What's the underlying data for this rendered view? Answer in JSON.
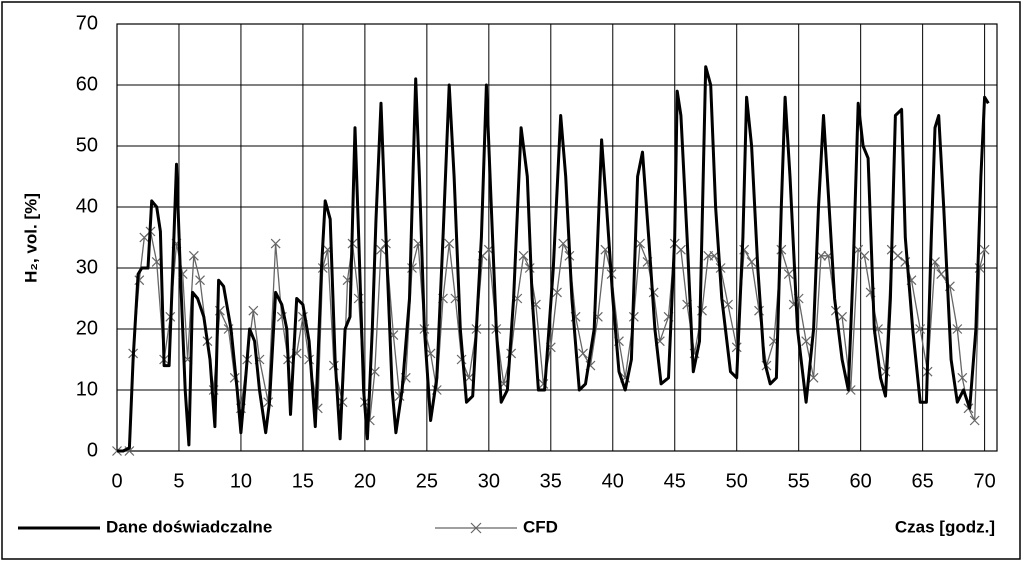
{
  "chart_data": {
    "type": "line",
    "xlabel": "Czas [godz.]",
    "ylabel": "H₂, vol. [%]",
    "xlim": [
      0,
      71
    ],
    "ylim": [
      0,
      70
    ],
    "xticks": [
      0,
      5,
      10,
      15,
      20,
      25,
      30,
      35,
      40,
      45,
      50,
      55,
      60,
      65,
      70
    ],
    "yticks": [
      0,
      10,
      20,
      30,
      40,
      50,
      60,
      70
    ],
    "grid": true,
    "series": [
      {
        "name": "Dane doświadczalne",
        "color": "#000000",
        "marker": "none",
        "x": [
          0,
          0.5,
          1,
          1.3,
          1.7,
          2,
          2.5,
          2.8,
          3.2,
          3.5,
          3.8,
          4.2,
          4.5,
          4.8,
          5.1,
          5.5,
          5.8,
          6.1,
          6.5,
          7,
          7.5,
          7.9,
          8.2,
          8.6,
          9.2,
          9.7,
          10,
          10.3,
          10.7,
          11.1,
          11.5,
          12,
          12.3,
          12.8,
          13.3,
          13.7,
          14,
          14.5,
          15,
          15.5,
          16,
          16.5,
          16.8,
          17.2,
          17.6,
          18,
          18.4,
          18.8,
          19.2,
          19.5,
          19.9,
          20.2,
          20.6,
          20.9,
          21.3,
          21.7,
          22.2,
          22.5,
          23,
          23.6,
          24.1,
          24.4,
          24.8,
          25.3,
          25.8,
          26.3,
          26.8,
          27.2,
          27.7,
          28.2,
          28.7,
          29.4,
          29.8,
          30.2,
          30.6,
          31,
          31.5,
          32,
          32.6,
          33.1,
          33.5,
          34,
          34.5,
          35.2,
          35.8,
          36.2,
          36.7,
          37.3,
          37.8,
          38.5,
          39.1,
          39.5,
          40,
          40.5,
          41,
          41.5,
          42,
          42.4,
          42.9,
          43.4,
          43.9,
          44.5,
          45,
          45.2,
          45.5,
          46,
          46.5,
          47,
          47.5,
          47.9,
          48.3,
          48.8,
          49.5,
          50,
          50.5,
          50.8,
          51.2,
          51.7,
          52.2,
          52.7,
          53.2,
          53.6,
          53.9,
          54.3,
          54.9,
          55.6,
          56.2,
          56.6,
          57,
          57.4,
          57.9,
          58.5,
          59,
          59.4,
          59.8,
          60.2,
          60.6,
          61.1,
          61.6,
          62,
          62.4,
          62.8,
          63.3,
          63.6,
          64.2,
          64.8,
          65.3,
          65.7,
          66,
          66.3,
          66.7,
          67.3,
          67.8,
          68.3,
          68.8,
          69.3,
          69.7,
          70,
          70.3
        ],
        "values": [
          0,
          0,
          0.5,
          15,
          29,
          30,
          30,
          41,
          40,
          36,
          14,
          14,
          30,
          47,
          30,
          10,
          1,
          26,
          25,
          22,
          15,
          4,
          28,
          27,
          20,
          10,
          3,
          10,
          20,
          18,
          10,
          3,
          8,
          26,
          24,
          20,
          6,
          25,
          24,
          18,
          4,
          30,
          41,
          38,
          15,
          2,
          20,
          22,
          53,
          35,
          10,
          2,
          20,
          38,
          57,
          35,
          10,
          3,
          10,
          25,
          61,
          45,
          20,
          5,
          12,
          35,
          60,
          45,
          20,
          8,
          9,
          35,
          60,
          40,
          20,
          8,
          10,
          25,
          53,
          45,
          25,
          10,
          10,
          30,
          55,
          45,
          25,
          10,
          11,
          20,
          51,
          40,
          25,
          13,
          10,
          15,
          45,
          49,
          35,
          20,
          11,
          12,
          35,
          59,
          55,
          35,
          13,
          18,
          63,
          60,
          40,
          25,
          13,
          12,
          35,
          58,
          50,
          30,
          15,
          11,
          12,
          40,
          58,
          45,
          20,
          8,
          20,
          40,
          55,
          42,
          25,
          15,
          10,
          30,
          57,
          50,
          48,
          20,
          12,
          9,
          25,
          55,
          56,
          35,
          20,
          8,
          8,
          35,
          53,
          55,
          40,
          15,
          8,
          10,
          7,
          20,
          45,
          58,
          57
        ]
      },
      {
        "name": "CFD",
        "color": "#666666",
        "marker": "x",
        "x": [
          0,
          1,
          1.3,
          1.8,
          2.2,
          2.7,
          3.2,
          3.8,
          4.3,
          4.8,
          5.3,
          5.7,
          6.2,
          6.7,
          7.3,
          7.8,
          8.3,
          9,
          9.5,
          10,
          10.5,
          11,
          11.5,
          12.2,
          12.8,
          13.3,
          13.8,
          14.5,
          15,
          15.5,
          16.2,
          16.6,
          17,
          17.5,
          18.2,
          18.6,
          19,
          19.5,
          20,
          20.4,
          20.8,
          21.3,
          21.7,
          22.3,
          22.8,
          23.3,
          23.8,
          24.3,
          24.8,
          25.3,
          25.8,
          26.3,
          26.8,
          27.3,
          27.8,
          28.4,
          29,
          29.5,
          30,
          30.6,
          31.2,
          31.8,
          32.3,
          32.8,
          33.3,
          33.8,
          34.4,
          35,
          35.5,
          36,
          36.5,
          37,
          37.6,
          38.2,
          38.8,
          39.4,
          39.9,
          40.5,
          41,
          41.7,
          42.2,
          42.8,
          43.3,
          43.8,
          44.5,
          45,
          45.5,
          46,
          46.6,
          47.2,
          47.7,
          48.2,
          48.7,
          49.3,
          50,
          50.6,
          51.2,
          51.8,
          52.4,
          53,
          53.6,
          54.2,
          54.6,
          55,
          55.6,
          56.2,
          56.8,
          57.4,
          58,
          58.5,
          59.2,
          59.8,
          60.3,
          60.8,
          61.4,
          62,
          62.5,
          63,
          63.6,
          64.1,
          64.8,
          65.4,
          66,
          66.5,
          67.2,
          67.8,
          68.2,
          68.7,
          69.2,
          69.6,
          70
        ],
        "values": [
          0,
          0,
          16,
          28,
          35,
          36,
          31,
          15,
          22,
          34,
          29,
          15,
          32,
          28,
          18,
          10,
          23,
          20,
          12,
          7,
          15,
          23,
          15,
          8,
          34,
          22,
          15,
          16,
          22,
          15,
          7,
          30,
          33,
          14,
          8,
          28,
          34,
          25,
          8,
          5,
          13,
          33,
          34,
          19,
          9,
          12,
          30,
          34,
          20,
          16,
          10,
          25,
          34,
          25,
          15,
          12,
          20,
          32,
          33,
          20,
          11,
          16,
          25,
          32,
          30,
          24,
          11,
          17,
          26,
          34,
          32,
          22,
          16,
          14,
          22,
          33,
          29,
          18,
          12,
          22,
          34,
          31,
          26,
          18,
          22,
          34,
          33,
          24,
          16,
          23,
          32,
          32,
          30,
          24,
          17,
          33,
          31,
          23,
          14,
          18,
          33,
          29,
          24,
          25,
          18,
          12,
          32,
          32,
          23,
          22,
          10,
          33,
          32,
          26,
          20,
          13,
          33,
          32,
          31,
          28,
          20,
          13,
          31,
          29,
          27,
          20,
          12,
          7,
          5,
          30,
          33
        ]
      }
    ]
  }
}
